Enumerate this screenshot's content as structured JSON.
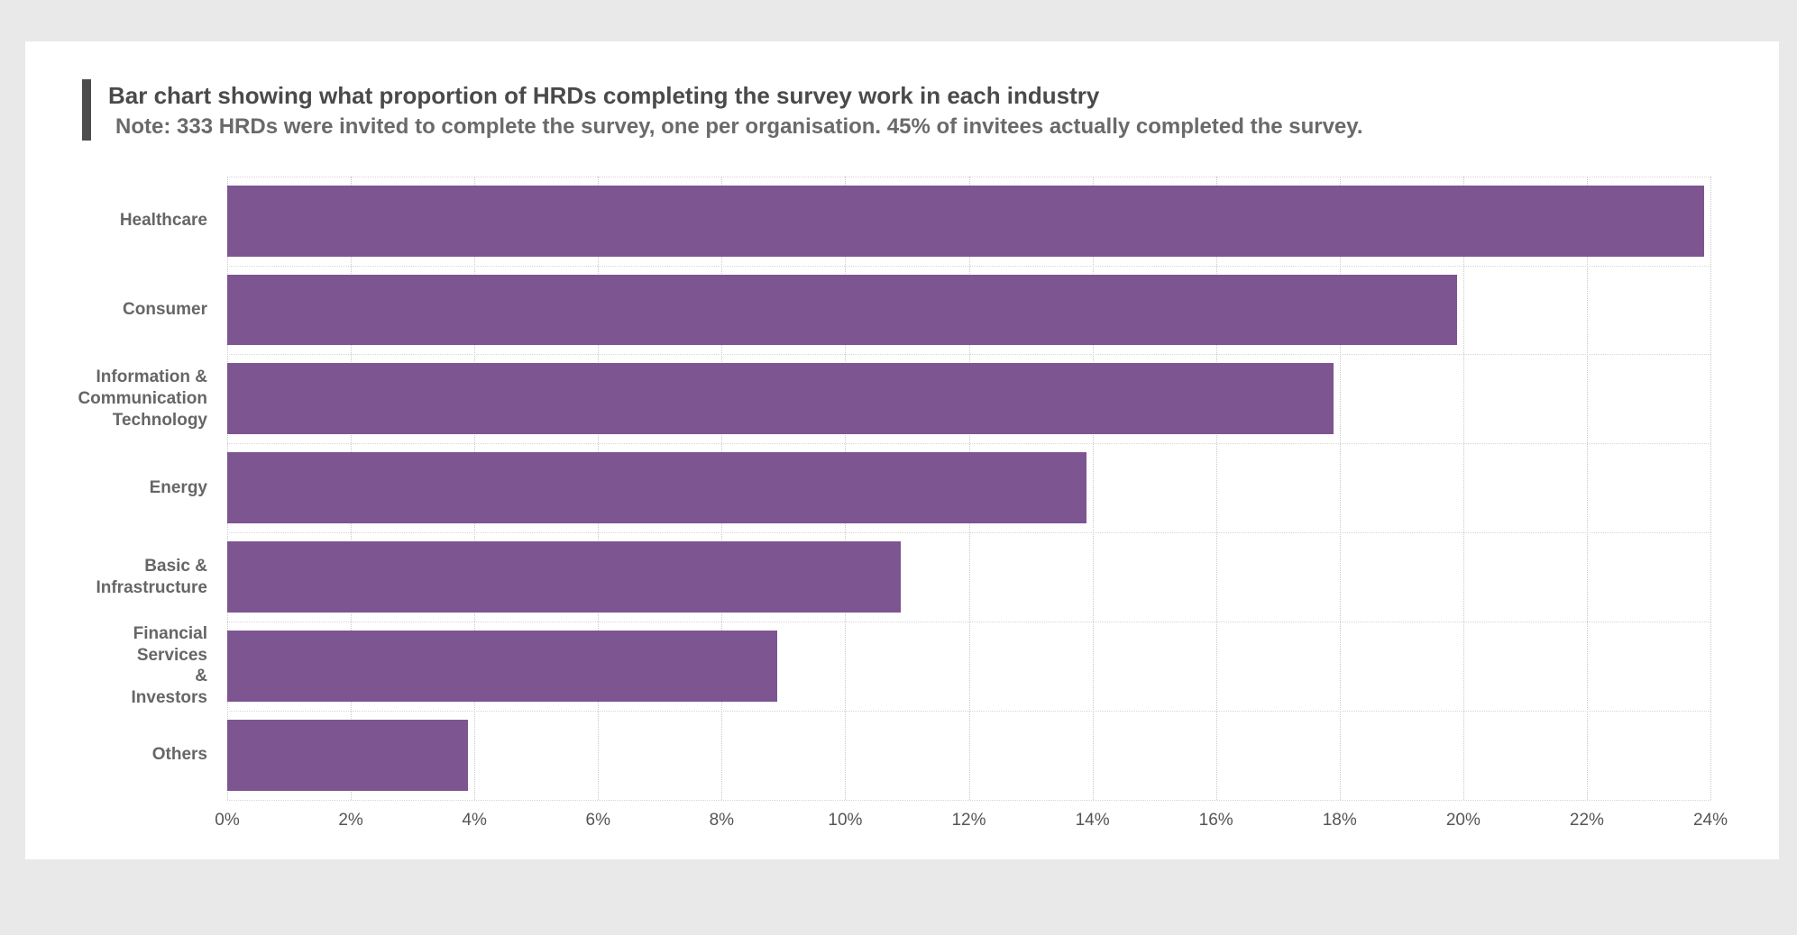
{
  "chart_data": {
    "type": "bar",
    "orientation": "horizontal",
    "title": "Bar chart showing what proportion of HRDs completing the survey work in each industry",
    "note": "Note: 333 HRDs were invited to complete the survey, one per organisation. 45% of invitees actually completed the survey.",
    "categories": [
      "Healthcare",
      "Consumer",
      "Information & Communication Technology",
      "Energy",
      "Basic & Infrastructure",
      "Financial Services & Investors",
      "Others"
    ],
    "category_label_lines": [
      [
        "Healthcare"
      ],
      [
        "Consumer"
      ],
      [
        "Information &",
        "Communication",
        "Technology"
      ],
      [
        "Energy"
      ],
      [
        "Basic &",
        "Infrastructure"
      ],
      [
        "Financial",
        "Services",
        "&",
        "Investors"
      ],
      [
        "Others"
      ]
    ],
    "values": [
      23.9,
      19.9,
      17.9,
      13.9,
      10.9,
      8.9,
      3.9
    ],
    "unit": "%",
    "xlabel": "",
    "ylabel": "",
    "xlim": [
      0,
      24
    ],
    "x_ticks": [
      0,
      2,
      4,
      6,
      8,
      10,
      12,
      14,
      16,
      18,
      20,
      22,
      24
    ],
    "x_tick_labels": [
      "0%",
      "2%",
      "4%",
      "6%",
      "8%",
      "10%",
      "12%",
      "14%",
      "16%",
      "18%",
      "20%",
      "22%",
      "24%"
    ],
    "bar_color": "#7d5591",
    "grid": "dotted",
    "legend": "none",
    "background_color": "#e9e9e9",
    "card_color": "#ffffff",
    "accent_bar_color": "#4d4d4d"
  }
}
